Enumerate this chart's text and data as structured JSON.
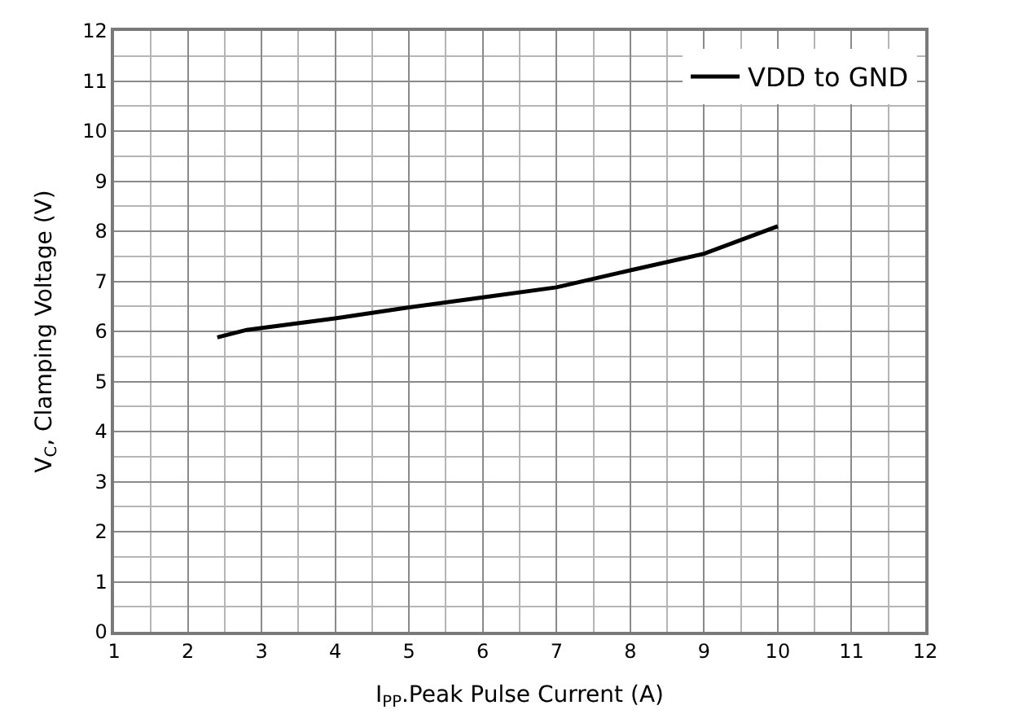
{
  "chart_data": {
    "type": "line",
    "xlabel": "I$_{PP}$.Peak Pulse Current (A)",
    "ylabel": "V$_{C}$, Clamping Voltage (V)",
    "xlim": [
      1,
      12
    ],
    "ylim": [
      0,
      12
    ],
    "xticks": [
      1,
      2,
      3,
      4,
      5,
      6,
      7,
      8,
      9,
      10,
      11,
      12
    ],
    "yticks": [
      0,
      1,
      2,
      3,
      4,
      5,
      6,
      7,
      8,
      9,
      10,
      11,
      12
    ],
    "grid": true,
    "legend": "top right",
    "marker": "none",
    "line_style": "solid",
    "series": [
      {
        "name": "VDD to GND",
        "color": "#000000",
        "x": [
          2.4,
          2.8,
          4,
          5,
          6,
          7,
          8,
          9,
          10
        ],
        "values": [
          5.88,
          6.03,
          6.26,
          6.48,
          6.68,
          6.88,
          7.22,
          7.55,
          8.1
        ]
      }
    ]
  }
}
